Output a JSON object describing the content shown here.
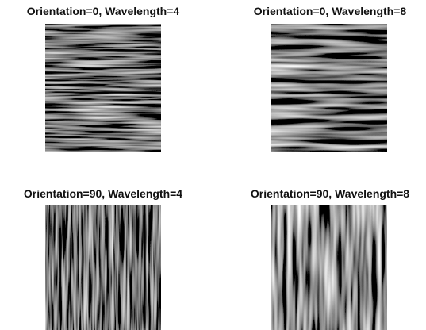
{
  "panels": [
    {
      "title": "Orientation=0, Wavelength=4"
    },
    {
      "title": "Orientation=0, Wavelength=8"
    },
    {
      "title": "Orientation=90, Wavelength=4"
    },
    {
      "title": "Orientation=90, Wavelength=8"
    }
  ]
}
